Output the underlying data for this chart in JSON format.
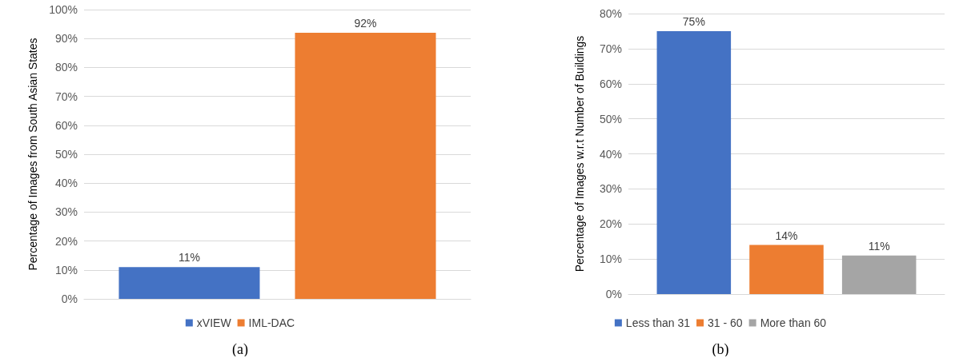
{
  "chart_data": [
    {
      "type": "bar",
      "categories": [
        null
      ],
      "ylabel": "Percentage of Images from South Asian States",
      "ylim": [
        0,
        100
      ],
      "yticks": [
        {
          "value": 0,
          "label": "0%"
        },
        {
          "value": 10,
          "label": "10%"
        },
        {
          "value": 20,
          "label": "20%"
        },
        {
          "value": 30,
          "label": "30%"
        },
        {
          "value": 40,
          "label": "40%"
        },
        {
          "value": 50,
          "label": "50%"
        },
        {
          "value": 60,
          "label": "60%"
        },
        {
          "value": 70,
          "label": "70%"
        },
        {
          "value": 80,
          "label": "80%"
        },
        {
          "value": 90,
          "label": "90%"
        },
        {
          "value": 100,
          "label": "100%"
        }
      ],
      "grid": "y",
      "legend": "bottom",
      "annotations": [
        "(a)"
      ],
      "series": [
        {
          "name": "xVIEW",
          "color": "#4472c4",
          "values": [
            11
          ],
          "value_labels": [
            "11%"
          ]
        },
        {
          "name": "IML-DAC",
          "color": "#ed7d31",
          "values": [
            92
          ],
          "value_labels": [
            "92%"
          ]
        }
      ]
    },
    {
      "type": "bar",
      "categories": [
        null
      ],
      "ylabel": "Percentage of Images w.r.t Number of Buildings",
      "ylim": [
        0,
        80
      ],
      "yticks": [
        {
          "value": 0,
          "label": "0%"
        },
        {
          "value": 10,
          "label": "10%"
        },
        {
          "value": 20,
          "label": "20%"
        },
        {
          "value": 30,
          "label": "30%"
        },
        {
          "value": 40,
          "label": "40%"
        },
        {
          "value": 50,
          "label": "50%"
        },
        {
          "value": 60,
          "label": "60%"
        },
        {
          "value": 70,
          "label": "70%"
        },
        {
          "value": 80,
          "label": "80%"
        }
      ],
      "grid": "y",
      "legend": "bottom",
      "annotations": [
        "(b)"
      ],
      "series": [
        {
          "name": "Less than 31",
          "color": "#4472c4",
          "values": [
            75
          ],
          "value_labels": [
            "75%"
          ]
        },
        {
          "name": "31 - 60",
          "color": "#ed7d31",
          "values": [
            14
          ],
          "value_labels": [
            "14%"
          ]
        },
        {
          "name": "More than 60",
          "color": "#a5a5a5",
          "values": [
            11
          ],
          "value_labels": [
            "11%"
          ]
        }
      ]
    }
  ]
}
